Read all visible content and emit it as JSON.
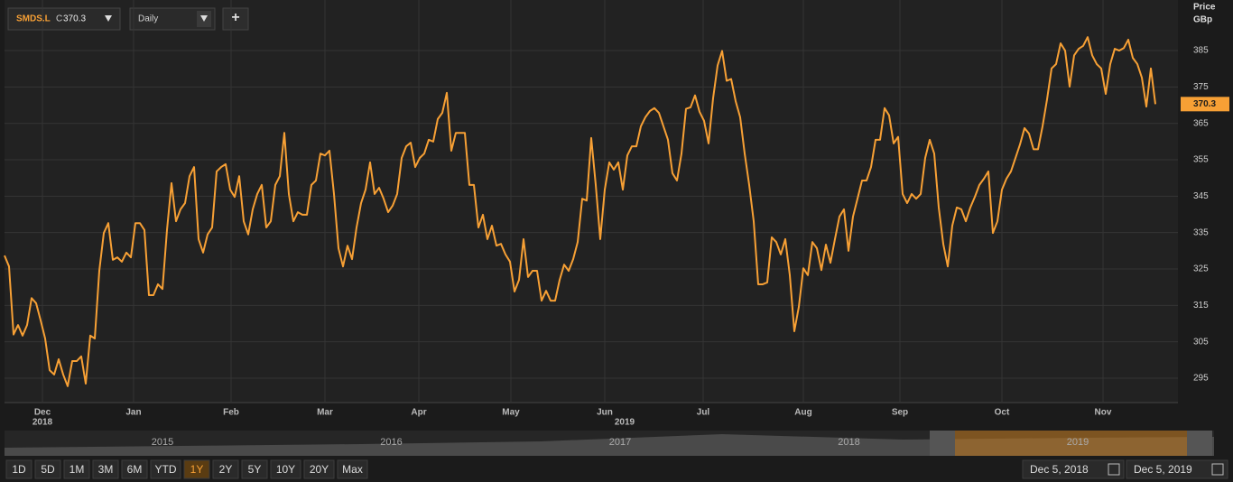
{
  "chart_data": {
    "type": "line",
    "ticker": "SMDS.L",
    "close_prefix": "C",
    "last_price": 370.3,
    "interval": "Daily",
    "add_button": "+",
    "y_title": "Price",
    "y_unit": "GBp",
    "series": [
      {
        "name": "SMDS.L",
        "color": "#f7a035",
        "values": [
          328.7,
          325.7,
          307,
          309.6,
          306.7,
          309.6,
          317,
          315.6,
          310.9,
          305.9,
          297.2,
          296,
          300.2,
          296,
          292.8,
          299.7,
          299.7,
          301,
          293.5,
          306.7,
          305.9,
          324.5,
          334.9,
          337.6,
          327.5,
          328.2,
          327,
          329.5,
          328.2,
          337.6,
          337.6,
          335.7,
          317.8,
          317.8,
          320.8,
          319.5,
          335.7,
          348.6,
          338.1,
          341.4,
          343.1,
          350.5,
          353,
          333.2,
          329.5,
          334.5,
          336.4,
          351.8,
          353,
          353.8,
          346.8,
          344.8,
          350.5,
          338.1,
          334.5,
          341.4,
          345.6,
          348.1,
          336.4,
          338.1,
          348.1,
          350.5,
          362.4,
          345.6,
          338.1,
          340.6,
          339.9,
          339.9,
          348.1,
          349.3,
          356.7,
          356.2,
          357.5,
          345.6,
          330.7,
          325.7,
          331.4,
          327.7,
          336.4,
          343.1,
          346.8,
          354.3,
          345.6,
          347.3,
          344.3,
          340.6,
          342.4,
          345.6,
          355.5,
          358.7,
          359.7,
          353,
          355.5,
          356.7,
          360.5,
          360,
          366.2,
          367.9,
          373.4,
          357.5,
          362.4,
          362.4,
          362.4,
          348.1,
          348.1,
          336.4,
          339.9,
          333.2,
          336.9,
          331.4,
          331.9,
          329,
          327,
          318.8,
          322,
          333.2,
          322.8,
          324.5,
          324.5,
          316.3,
          319,
          316.3,
          316.3,
          322,
          326.2,
          324.5,
          327.7,
          332.4,
          344.3,
          343.8,
          361,
          348.1,
          333.2,
          346.8,
          354.3,
          352.3,
          354.3,
          346.8,
          356.2,
          358.7,
          358.7,
          364.2,
          366.7,
          368.4,
          369.2,
          367.9,
          364.2,
          360.5,
          351.3,
          349.3,
          356.7,
          369,
          369.4,
          372.7,
          368.2,
          365.7,
          359.5,
          371.9,
          380.9,
          384.9,
          376.7,
          377.2,
          371.1,
          366.7,
          356.7,
          348.1,
          338.1,
          320.8,
          320.8,
          321.3,
          333.7,
          332.4,
          329,
          333.2,
          323.3,
          307.9,
          314.6,
          325.2,
          323.3,
          332.4,
          330.7,
          324.7,
          331.7,
          326.7,
          333.2,
          339.4,
          341.4,
          330,
          339.4,
          344.3,
          349.3,
          349.3,
          353,
          360.5,
          360.5,
          369.2,
          367.2,
          359.5,
          361.3,
          345.6,
          343.1,
          345.6,
          344.3,
          345.6,
          355.5,
          360.5,
          356.7,
          341.9,
          331.9,
          325.7,
          336.9,
          341.9,
          341.4,
          338.1,
          341.9,
          344.8,
          348.1,
          349.8,
          351.8,
          334.9,
          338.1,
          346.8,
          349.8,
          351.8,
          355.5,
          359.2,
          363.7,
          362.2,
          357.9,
          357.9,
          364.2,
          371.6,
          380.1,
          381.3,
          387,
          385,
          375.1,
          383.7,
          385.5,
          386.3,
          388.7,
          383.7,
          381.3,
          380.1,
          373.1,
          381.3,
          385.5,
          385,
          385.7,
          388,
          383,
          381.3,
          377.6,
          369.6,
          380.1,
          370.3
        ]
      }
    ],
    "xlim": [
      0,
      260
    ],
    "ylim": [
      288.3,
      398.9
    ],
    "yticks": [
      295,
      305,
      315,
      325,
      335,
      345,
      355,
      365,
      375,
      385
    ],
    "xticks": [
      {
        "value": 8.4,
        "label": "Dec"
      },
      {
        "value": 28.6,
        "label": "Jan"
      },
      {
        "value": 50.2,
        "label": "Feb"
      },
      {
        "value": 71,
        "label": "Mar"
      },
      {
        "value": 91.8,
        "label": "Apr"
      },
      {
        "value": 112.2,
        "label": "May"
      },
      {
        "value": 133,
        "label": "Jun"
      },
      {
        "value": 154.8,
        "label": "Jul"
      },
      {
        "value": 177,
        "label": "Aug"
      },
      {
        "value": 198.4,
        "label": "Sep"
      },
      {
        "value": 221,
        "label": "Oct"
      },
      {
        "value": 243.4,
        "label": "Nov"
      }
    ],
    "year_ticks": [
      {
        "value": 8.4,
        "label": "2018"
      },
      {
        "value": 137.4,
        "label": "2019"
      }
    ],
    "navigator_years": [
      "2015",
      "2016",
      "2017",
      "2018",
      "2019"
    ],
    "ranges": [
      "1D",
      "5D",
      "1M",
      "3M",
      "6M",
      "YTD",
      "1Y",
      "2Y",
      "5Y",
      "10Y",
      "20Y",
      "Max"
    ],
    "selected_range": "1Y",
    "date_from": "Dec 5, 2018",
    "date_to": "Dec 5, 2019",
    "grid": true
  }
}
